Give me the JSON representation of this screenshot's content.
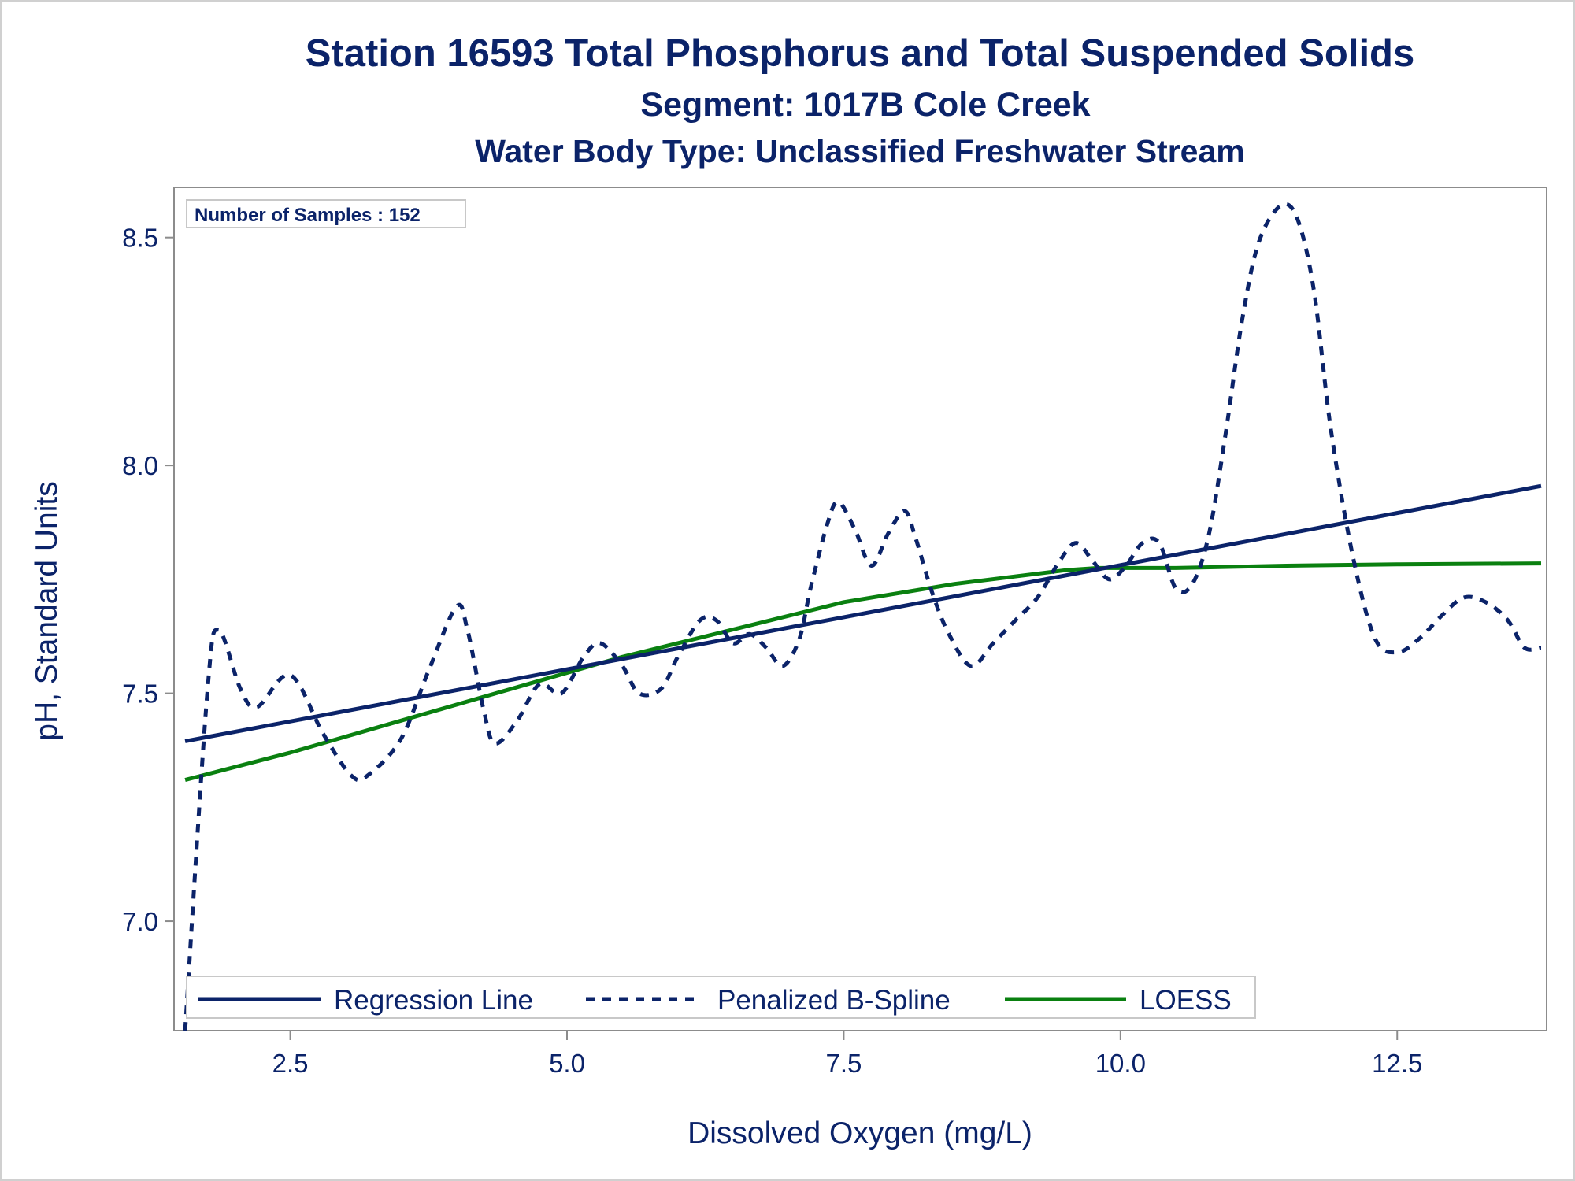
{
  "titles": {
    "line1": "Station 16593  Total Phosphorus and Total Suspended Solids",
    "line2": "Segment: 1017B  Cole Creek",
    "line3": "Water Body Type: Unclassified Freshwater Stream"
  },
  "inset": {
    "text": "Number of Samples : 152"
  },
  "colors": {
    "navy": "#0b2369",
    "green": "#0a8010",
    "frame": "#8c8c8c"
  },
  "chart_data": {
    "type": "line",
    "xlabel": "Dissolved Oxygen (mg/L)",
    "ylabel": "pH, Standard Units",
    "xlim": [
      1.45,
      13.85
    ],
    "ylim": [
      6.76,
      8.61
    ],
    "xticks": [
      2.5,
      5.0,
      7.5,
      10.0,
      12.5
    ],
    "xtick_labels": [
      "2.5",
      "5.0",
      "7.5",
      "10.0",
      "12.5"
    ],
    "yticks": [
      7.0,
      7.5,
      8.0,
      8.5
    ],
    "ytick_labels": [
      "7.0",
      "7.5",
      "8.0",
      "8.5"
    ],
    "legend_position": "bottom-left",
    "series": [
      {
        "name": "Regression Line",
        "style": "solid",
        "color": "#0b2369",
        "x": [
          1.55,
          13.8
        ],
        "y": [
          7.395,
          7.955
        ]
      },
      {
        "name": "Penalized B-Spline",
        "style": "dashed",
        "color": "#0b2369",
        "x": [
          1.55,
          1.75,
          1.85,
          2.05,
          2.2,
          2.5,
          2.8,
          3.05,
          3.2,
          3.5,
          3.75,
          4.0,
          4.1,
          4.25,
          4.35,
          4.55,
          4.75,
          4.95,
          5.15,
          5.3,
          5.5,
          5.65,
          5.85,
          6.0,
          6.2,
          6.35,
          6.5,
          6.65,
          6.8,
          6.95,
          7.1,
          7.2,
          7.35,
          7.45,
          7.6,
          7.75,
          7.9,
          8.05,
          8.15,
          8.3,
          8.45,
          8.65,
          8.85,
          9.05,
          9.25,
          9.45,
          9.6,
          9.75,
          9.9,
          10.05,
          10.2,
          10.35,
          10.5,
          10.65,
          10.8,
          10.95,
          11.1,
          11.25,
          11.45,
          11.6,
          11.75,
          11.9,
          12.1,
          12.3,
          12.5,
          12.7,
          12.9,
          13.1,
          13.3,
          13.5,
          13.65,
          13.8
        ],
        "y": [
          6.76,
          7.5,
          7.64,
          7.51,
          7.47,
          7.54,
          7.41,
          7.32,
          7.32,
          7.4,
          7.55,
          7.69,
          7.64,
          7.46,
          7.39,
          7.44,
          7.52,
          7.5,
          7.58,
          7.61,
          7.56,
          7.5,
          7.51,
          7.58,
          7.66,
          7.66,
          7.61,
          7.63,
          7.6,
          7.56,
          7.62,
          7.73,
          7.87,
          7.92,
          7.86,
          7.78,
          7.85,
          7.9,
          7.84,
          7.72,
          7.63,
          7.56,
          7.61,
          7.66,
          7.71,
          7.79,
          7.83,
          7.79,
          7.75,
          7.78,
          7.83,
          7.83,
          7.73,
          7.74,
          7.85,
          8.07,
          8.32,
          8.49,
          8.57,
          8.54,
          8.38,
          8.08,
          7.8,
          7.62,
          7.59,
          7.62,
          7.67,
          7.71,
          7.7,
          7.66,
          7.6,
          7.6
        ]
      },
      {
        "name": "LOESS",
        "style": "solid",
        "color": "#0a8010",
        "x": [
          1.55,
          2.5,
          3.5,
          4.5,
          5.5,
          6.5,
          7.5,
          8.5,
          9.5,
          9.8,
          10.5,
          11.5,
          12.5,
          13.8
        ],
        "y": [
          7.31,
          7.37,
          7.44,
          7.51,
          7.58,
          7.64,
          7.7,
          7.74,
          7.77,
          7.775,
          7.775,
          7.78,
          7.783,
          7.785
        ]
      }
    ]
  }
}
